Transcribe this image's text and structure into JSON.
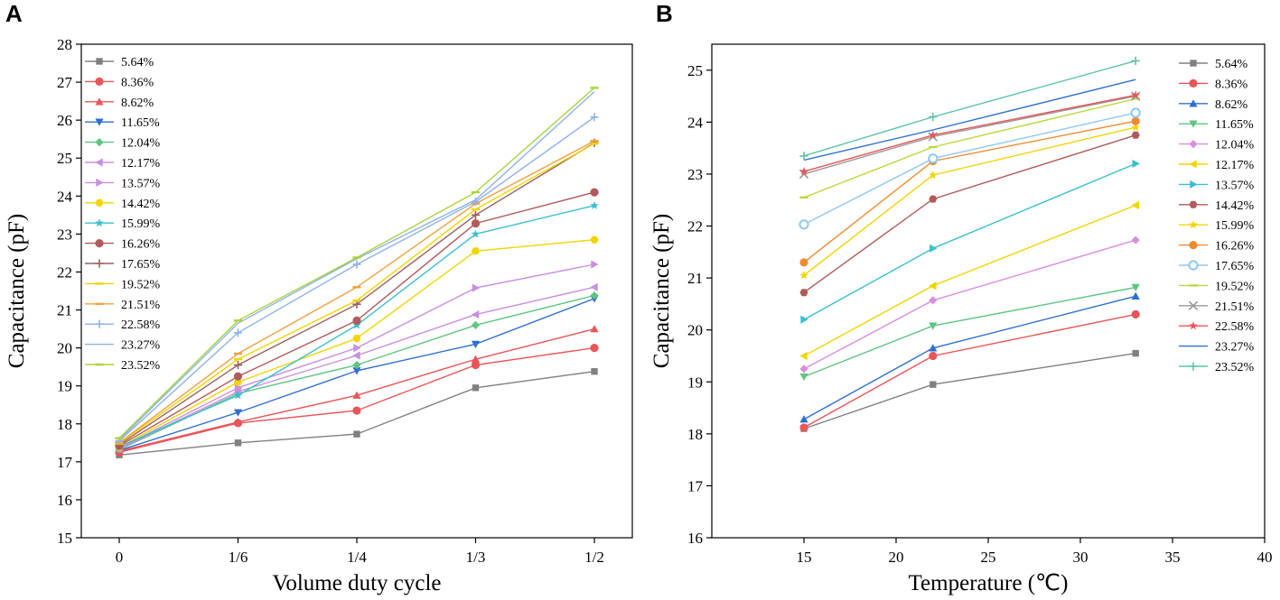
{
  "panel_labels": [
    "A",
    "B"
  ],
  "chart_data": [
    {
      "type": "line",
      "title": "",
      "xlabel": "Volume duty cycle",
      "ylabel": "Capacitance (pF)",
      "categories": [
        "0",
        "1/6",
        "1/4",
        "1/3",
        "1/2"
      ],
      "ylim": [
        15,
        28
      ],
      "yticks": [
        15,
        16,
        17,
        18,
        19,
        20,
        21,
        22,
        23,
        24,
        25,
        26,
        27,
        28
      ],
      "series": [
        {
          "name": "5.64%",
          "color": "#808080",
          "marker": "square",
          "values": [
            17.18,
            17.5,
            17.73,
            18.95,
            19.38
          ]
        },
        {
          "name": "8.36%",
          "color": "#e8555a",
          "marker": "circle",
          "values": [
            17.25,
            18.02,
            18.35,
            19.55,
            20.0
          ]
        },
        {
          "name": "8.62%",
          "color": "#e8555a",
          "marker": "triangle",
          "values": [
            17.28,
            18.05,
            18.75,
            19.7,
            20.5
          ]
        },
        {
          "name": "11.65%",
          "color": "#2f6fd1",
          "marker": "tri-down",
          "values": [
            17.3,
            18.3,
            19.4,
            20.1,
            21.3
          ]
        },
        {
          "name": "12.04%",
          "color": "#5fc580",
          "marker": "diamond",
          "values": [
            17.32,
            18.8,
            19.55,
            20.6,
            21.38
          ]
        },
        {
          "name": "12.17%",
          "color": "#c88fe0",
          "marker": "tri-left",
          "values": [
            17.34,
            18.85,
            19.8,
            20.88,
            21.6
          ]
        },
        {
          "name": "13.57%",
          "color": "#c88fe0",
          "marker": "tri-right",
          "values": [
            17.36,
            18.95,
            20.0,
            21.58,
            22.2
          ]
        },
        {
          "name": "14.42%",
          "color": "#f2d400",
          "marker": "hexagon",
          "values": [
            17.38,
            19.1,
            20.25,
            22.55,
            22.85
          ]
        },
        {
          "name": "15.99%",
          "color": "#3bbfd0",
          "marker": "star",
          "values": [
            17.4,
            18.75,
            20.6,
            23.0,
            23.75
          ]
        },
        {
          "name": "16.26%",
          "color": "#b05a5a",
          "marker": "circle",
          "values": [
            17.42,
            19.25,
            20.72,
            23.28,
            24.1
          ]
        },
        {
          "name": "17.65%",
          "color": "#9a6060",
          "marker": "plus",
          "values": [
            17.45,
            19.55,
            21.15,
            23.5,
            25.4
          ]
        },
        {
          "name": "19.52%",
          "color": "#f2d400",
          "marker": "dash",
          "values": [
            17.48,
            19.7,
            21.25,
            23.65,
            25.38
          ]
        },
        {
          "name": "21.51%",
          "color": "#f0a040",
          "marker": "dash",
          "values": [
            17.5,
            19.85,
            21.6,
            23.8,
            25.45
          ]
        },
        {
          "name": "22.58%",
          "color": "#8fb3e8",
          "marker": "plus",
          "values": [
            17.55,
            20.4,
            22.2,
            23.85,
            26.08
          ]
        },
        {
          "name": "23.27%",
          "color": "#8fb3e8",
          "marker": "none",
          "values": [
            17.58,
            20.65,
            22.35,
            23.9,
            26.75
          ]
        },
        {
          "name": "23.52%",
          "color": "#a8d43c",
          "marker": "dash",
          "values": [
            17.62,
            20.72,
            22.38,
            24.1,
            26.85
          ]
        }
      ]
    },
    {
      "type": "line",
      "title": "",
      "xlabel": "Temperature (℃)",
      "ylabel": "Capacitance (pF)",
      "x": [
        15,
        22,
        33
      ],
      "xlim": [
        10,
        40
      ],
      "xticks": [
        15,
        20,
        25,
        30,
        35,
        40
      ],
      "ylim": [
        16,
        25.5
      ],
      "yticks": [
        16,
        17,
        18,
        19,
        20,
        21,
        22,
        23,
        24,
        25
      ],
      "series": [
        {
          "name": "5.64%",
          "color": "#808080",
          "marker": "square",
          "values": [
            18.1,
            18.95,
            19.55
          ]
        },
        {
          "name": "8.36%",
          "color": "#e8555a",
          "marker": "circle",
          "values": [
            18.12,
            19.5,
            20.3
          ]
        },
        {
          "name": "8.62%",
          "color": "#2f6fd1",
          "marker": "triangle",
          "values": [
            18.28,
            19.65,
            20.65
          ]
        },
        {
          "name": "11.65%",
          "color": "#5fc580",
          "marker": "tri-down",
          "values": [
            19.1,
            20.08,
            20.82
          ]
        },
        {
          "name": "12.04%",
          "color": "#d98de0",
          "marker": "diamond",
          "values": [
            19.25,
            20.57,
            21.73
          ]
        },
        {
          "name": "12.17%",
          "color": "#f2d400",
          "marker": "tri-left",
          "values": [
            19.5,
            20.85,
            22.4
          ]
        },
        {
          "name": "13.57%",
          "color": "#3bbfd0",
          "marker": "tri-right",
          "values": [
            20.2,
            21.57,
            23.2
          ]
        },
        {
          "name": "14.42%",
          "color": "#b05a5a",
          "marker": "hexagon",
          "values": [
            20.72,
            22.52,
            23.75
          ]
        },
        {
          "name": "15.99%",
          "color": "#f2d400",
          "marker": "star",
          "values": [
            21.05,
            22.98,
            23.9
          ]
        },
        {
          "name": "16.26%",
          "color": "#f08a30",
          "marker": "circle",
          "values": [
            21.3,
            23.25,
            24.02
          ]
        },
        {
          "name": "17.65%",
          "color": "#8ec8f0",
          "marker": "circle-open",
          "values": [
            22.03,
            23.3,
            24.18
          ]
        },
        {
          "name": "19.52%",
          "color": "#b8d83a",
          "marker": "dash",
          "values": [
            22.55,
            23.52,
            24.45
          ]
        },
        {
          "name": "21.51%",
          "color": "#999999",
          "marker": "x",
          "values": [
            23.0,
            23.72,
            24.5
          ]
        },
        {
          "name": "22.58%",
          "color": "#e8555a",
          "marker": "star",
          "values": [
            23.05,
            23.75,
            24.52
          ]
        },
        {
          "name": "23.27%",
          "color": "#2f6fd1",
          "marker": "none",
          "values": [
            23.27,
            23.85,
            24.82
          ]
        },
        {
          "name": "23.52%",
          "color": "#5fc5a0",
          "marker": "plus",
          "values": [
            23.35,
            24.1,
            25.18
          ]
        }
      ]
    }
  ]
}
